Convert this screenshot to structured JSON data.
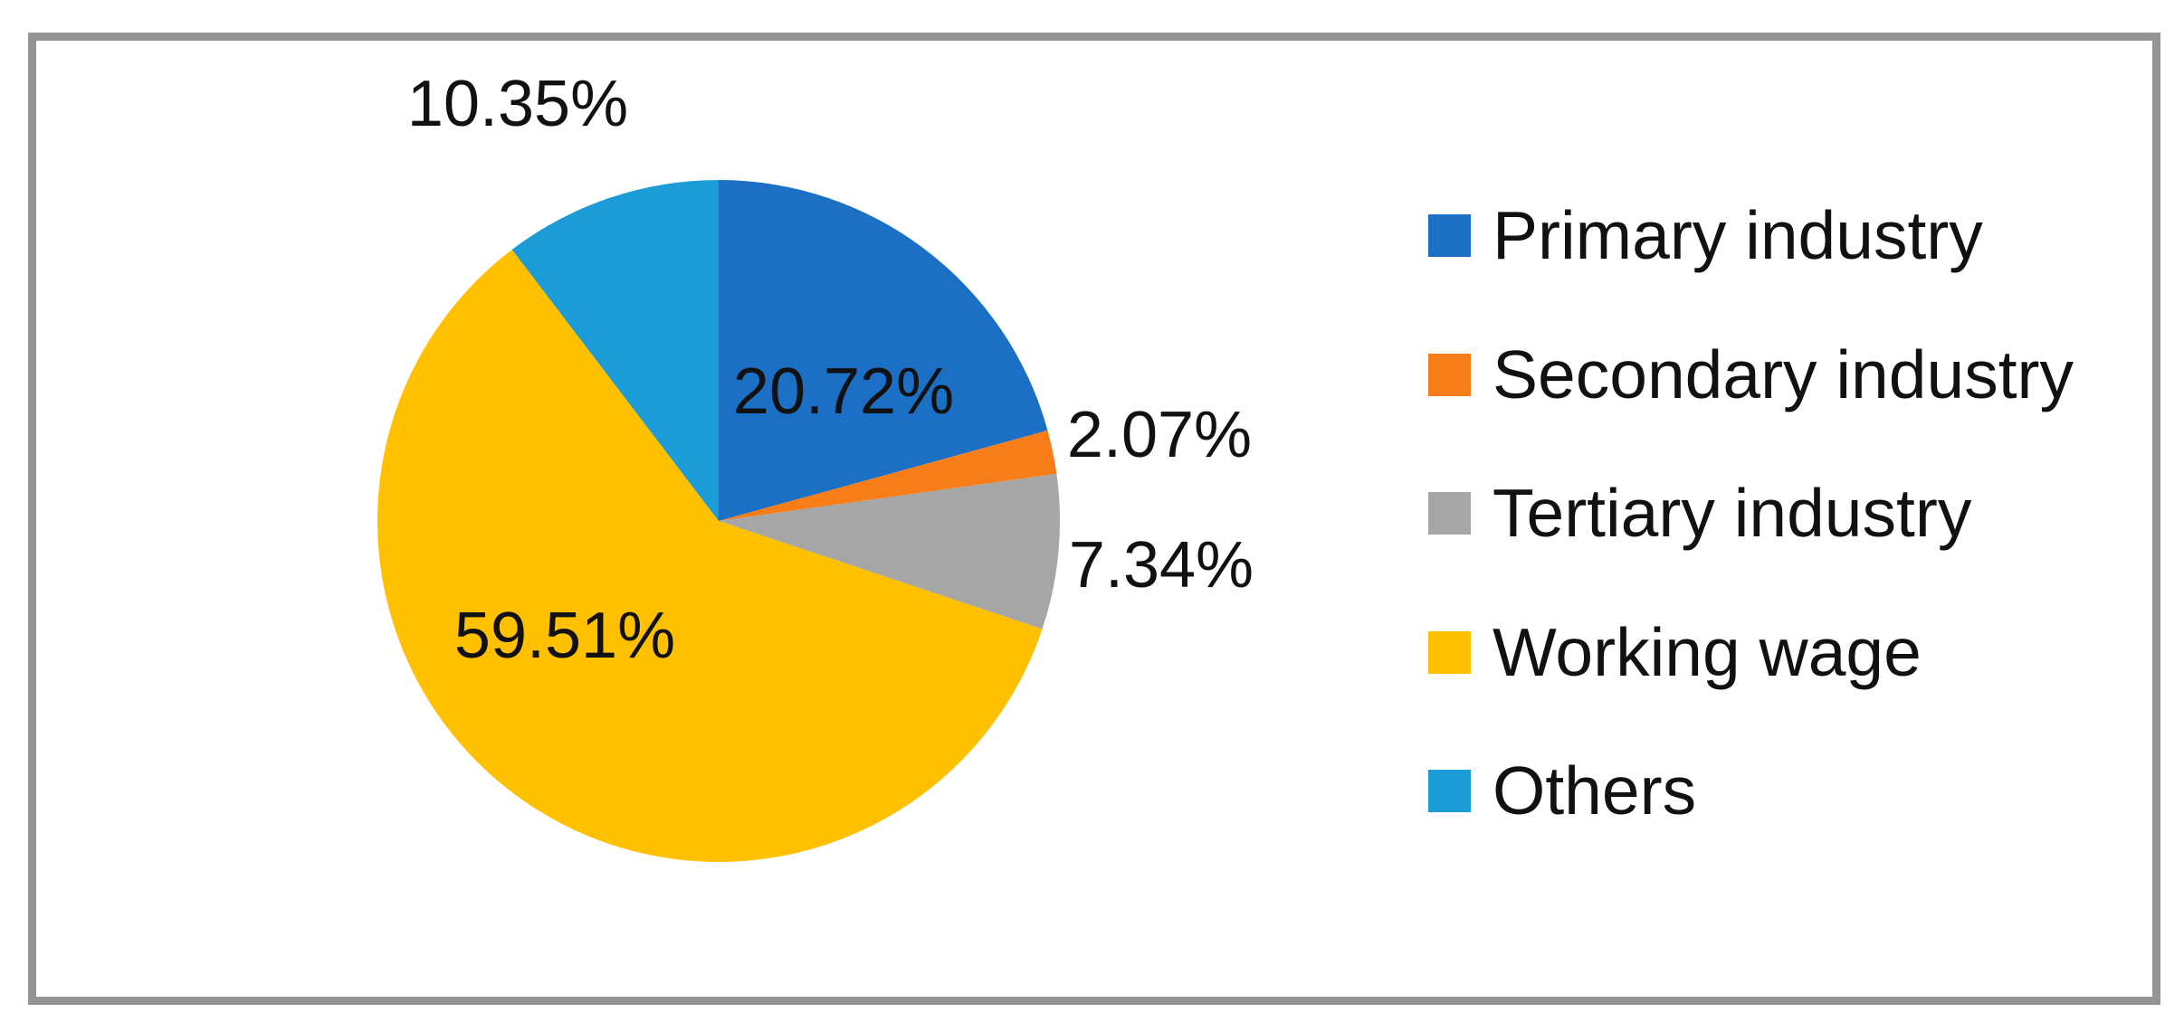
{
  "figure": {
    "background": "#ffffff",
    "border_color": "#949494"
  },
  "chart_data": {
    "type": "pie",
    "title": "",
    "start_angle_deg": 0,
    "direction": "clockwise",
    "legend_position": "right",
    "grid": false,
    "slices": [
      {
        "label": "Primary industry",
        "value": 20.72,
        "display": "20.72%",
        "color": "#1b6fc5",
        "label_placement": "inside"
      },
      {
        "label": "Secondary industry",
        "value": 2.07,
        "display": "2.07%",
        "color": "#f87d18",
        "label_placement": "outside"
      },
      {
        "label": "Tertiary industry",
        "value": 7.34,
        "display": "7.34%",
        "color": "#a6a6a6",
        "label_placement": "outside"
      },
      {
        "label": "Working wage",
        "value": 59.51,
        "display": "59.51%",
        "color": "#ffc000",
        "label_placement": "inside"
      },
      {
        "label": "Others",
        "value": 10.35,
        "display": "10.35%",
        "color": "#1c9cd7",
        "label_placement": "outside"
      }
    ]
  }
}
